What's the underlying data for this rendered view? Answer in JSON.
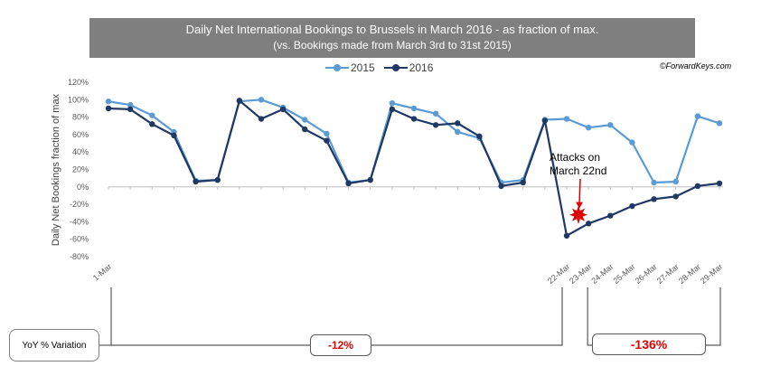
{
  "chart_data": {
    "type": "line",
    "title": "Daily Net International Bookings to Brussels in March 2016 - as fraction of max.",
    "subtitle": "(vs. Bookings made from March 3rd to 31st 2015)",
    "source": "©ForwardKeys.com",
    "xlabel": "",
    "ylabel": "Daily Net Bookings fraction of max",
    "ylim": [
      -80,
      120
    ],
    "yticks": [
      "120%",
      "100%",
      "80%",
      "60%",
      "40%",
      "20%",
      "0%",
      "-20%",
      "-40%",
      "-60%",
      "-80%"
    ],
    "xtick_labels": [
      {
        "index": 0,
        "label": "1-Mar"
      },
      {
        "index": 21,
        "label": "22-Mar"
      },
      {
        "index": 22,
        "label": "23-Mar"
      },
      {
        "index": 23,
        "label": "24-Mar"
      },
      {
        "index": 24,
        "label": "25-Mar"
      },
      {
        "index": 25,
        "label": "26-Mar"
      },
      {
        "index": 26,
        "label": "27-Mar"
      },
      {
        "index": 27,
        "label": "28-Mar"
      },
      {
        "index": 28,
        "label": "29-Mar"
      }
    ],
    "x": [
      1,
      2,
      3,
      4,
      5,
      6,
      7,
      8,
      9,
      10,
      11,
      12,
      13,
      14,
      15,
      16,
      17,
      18,
      19,
      20,
      21,
      22,
      23,
      24,
      25,
      26,
      27,
      28,
      29
    ],
    "series": [
      {
        "name": "2015",
        "color": "#5b9bd5",
        "values": [
          98,
          94,
          82,
          63,
          7,
          8,
          98,
          100,
          91,
          77,
          61,
          5,
          8,
          96,
          90,
          84,
          63,
          56,
          5,
          8,
          77,
          78,
          68,
          71,
          51,
          5,
          6,
          81,
          73
        ]
      },
      {
        "name": "2016",
        "color": "#1f3864",
        "values": [
          90,
          89,
          72,
          59,
          6,
          8,
          99,
          78,
          89,
          66,
          53,
          4,
          8,
          89,
          78,
          71,
          73,
          58,
          1,
          5,
          76,
          -56,
          -42,
          -33,
          -22,
          -14,
          -11,
          1,
          4
        ]
      }
    ],
    "annotation": {
      "lines": [
        "Attacks on",
        "March 22nd"
      ],
      "index": 21
    },
    "yoy": {
      "label": "YoY % Variation",
      "before": "-12%",
      "after": "-136%"
    }
  }
}
